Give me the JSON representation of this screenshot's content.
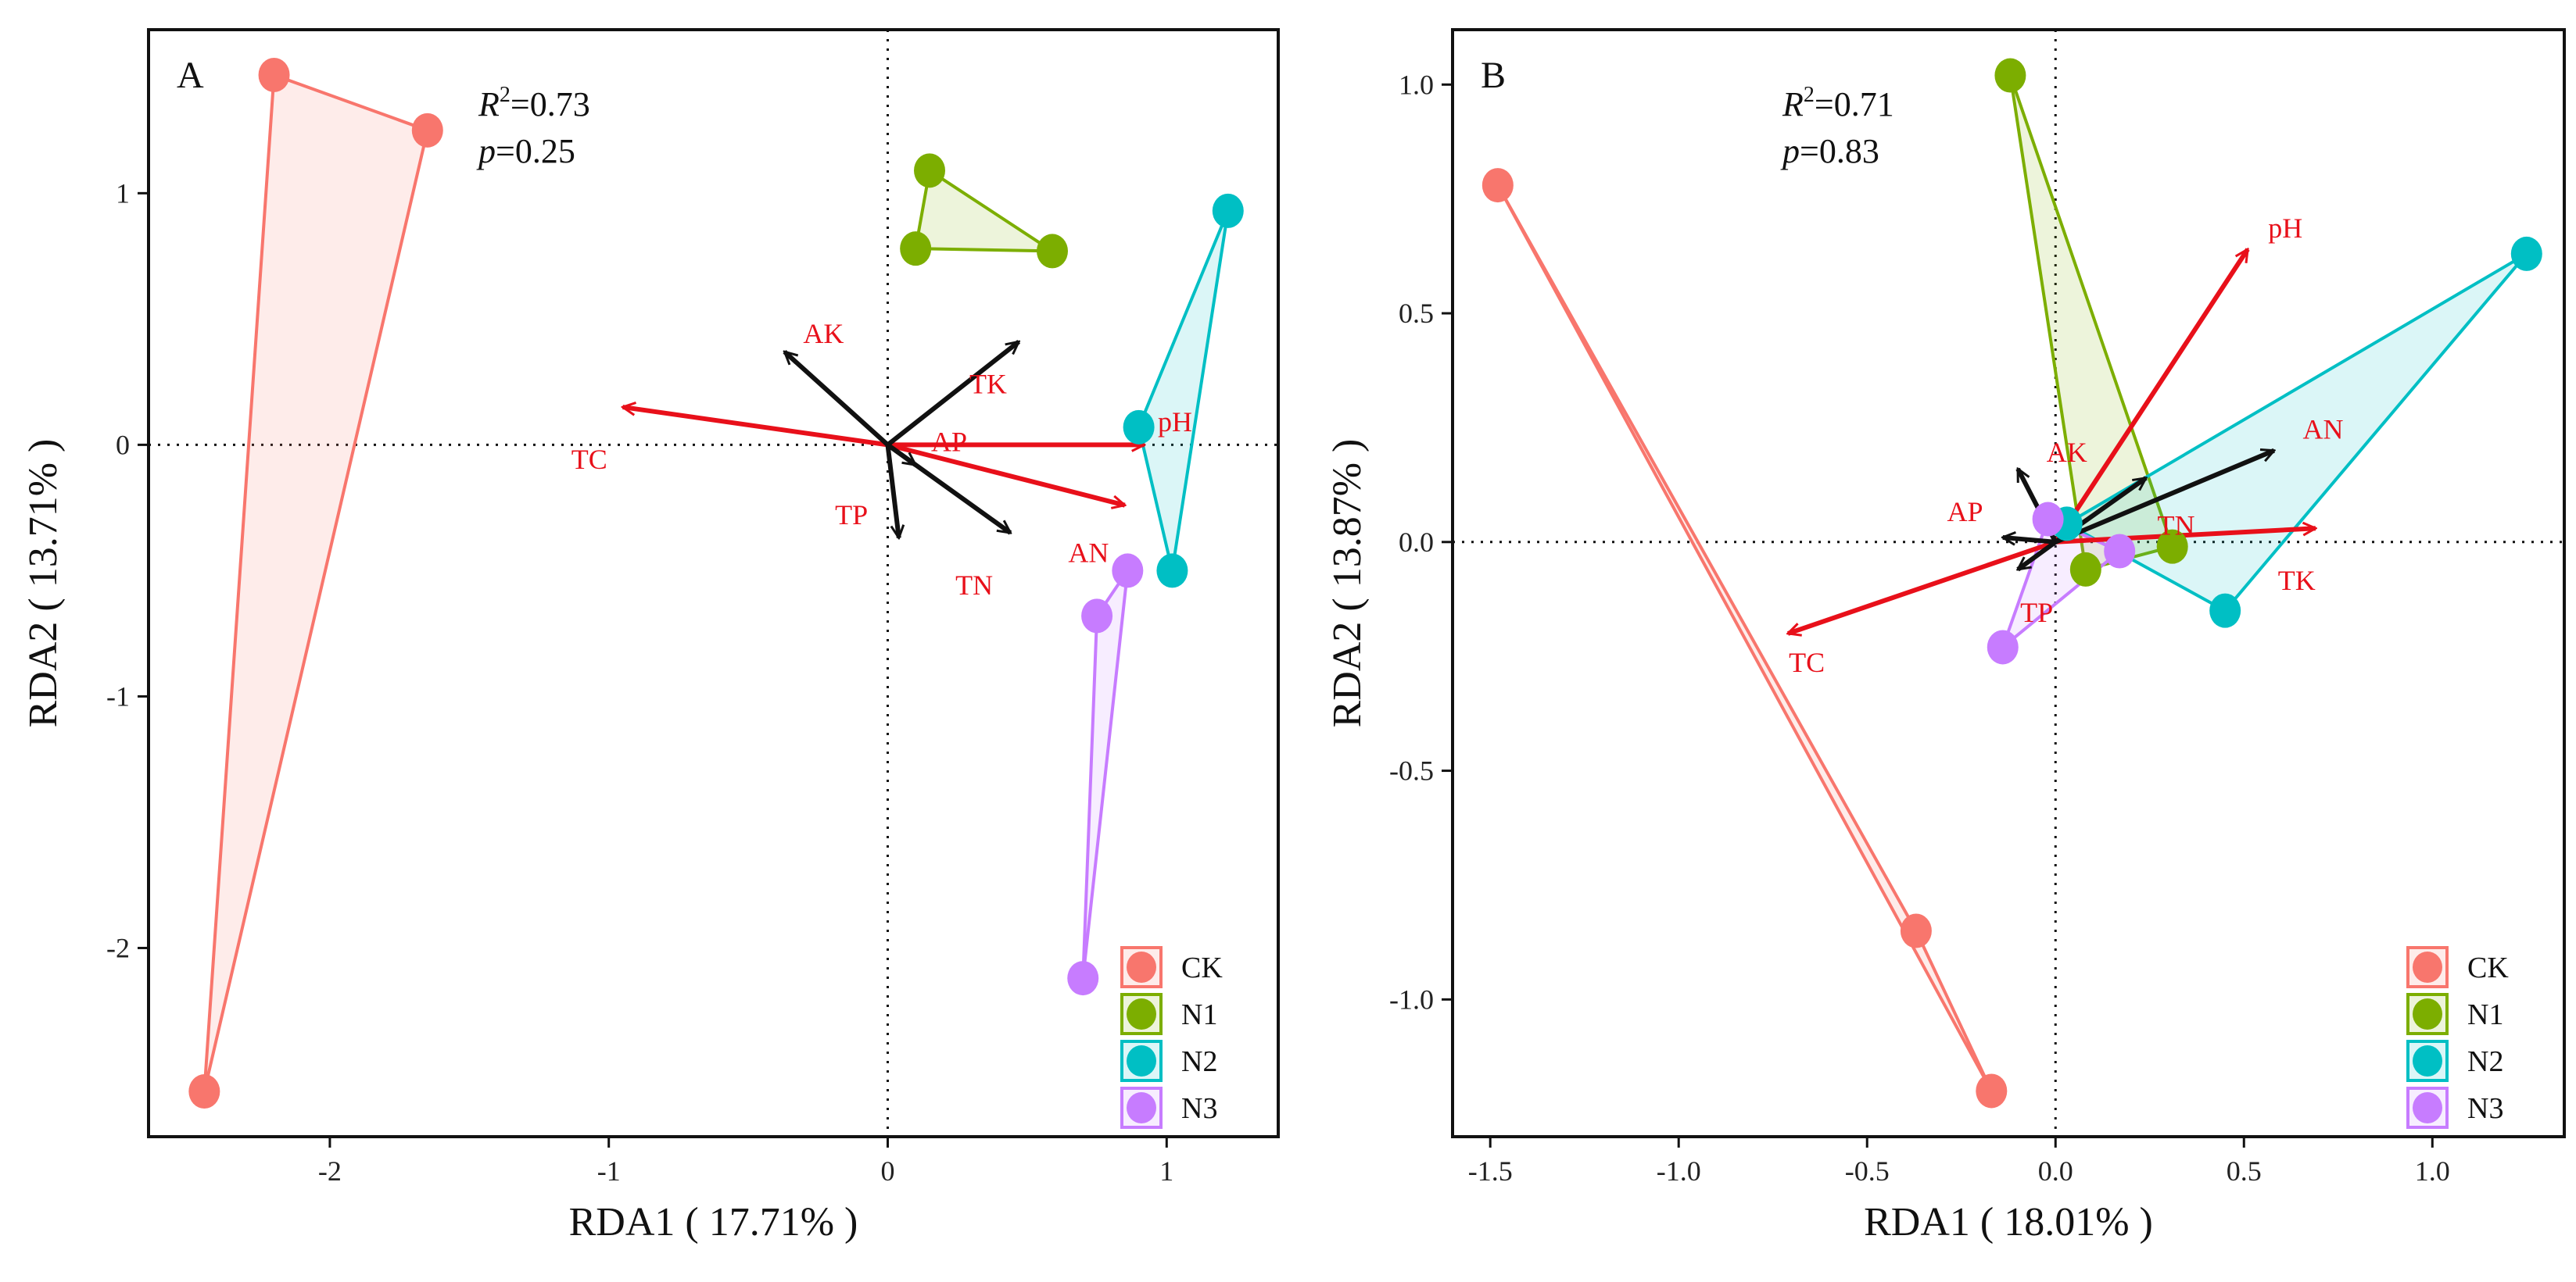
{
  "chart_data": [
    {
      "type": "scatter",
      "panel": "A",
      "xlabel": "RDA1 ( 17.71% )",
      "ylabel": "RDA2 ( 13.71% )",
      "xlim": [
        -2.65,
        1.4
      ],
      "ylim": [
        -2.75,
        1.65
      ],
      "xticks": [
        -2,
        -1,
        0,
        1
      ],
      "yticks": [
        -2,
        -1,
        0,
        1
      ],
      "xtick_labels": [
        "-2",
        "-1",
        "0",
        "1"
      ],
      "ytick_labels": [
        "-2",
        "-1",
        "0",
        "1"
      ],
      "annotations": {
        "r2_label": "R",
        "r2_sup": "2",
        "r2_value": "=0.73",
        "p_label": "p",
        "p_value": "=0.25"
      },
      "groups": [
        {
          "name": "CK",
          "color": "#F8766D",
          "points": [
            [
              -2.2,
              1.47
            ],
            [
              -1.65,
              1.25
            ],
            [
              -2.45,
              -2.57
            ]
          ]
        },
        {
          "name": "N1",
          "color": "#7CAE00",
          "points": [
            [
              0.15,
              1.09
            ],
            [
              0.1,
              0.78
            ],
            [
              0.59,
              0.77
            ]
          ]
        },
        {
          "name": "N2",
          "color": "#00BFC4",
          "points": [
            [
              1.22,
              0.93
            ],
            [
              0.9,
              0.07
            ],
            [
              1.02,
              -0.5
            ]
          ]
        },
        {
          "name": "N3",
          "color": "#C77CFF",
          "points": [
            [
              0.86,
              -0.5
            ],
            [
              0.75,
              -0.68
            ],
            [
              0.7,
              -2.12
            ]
          ]
        }
      ],
      "vectors": [
        {
          "label": "TC",
          "x": -0.95,
          "y": 0.15,
          "color": "#E8101A",
          "lx": -1.07,
          "ly": -0.07
        },
        {
          "label": "pH",
          "x": 0.92,
          "y": 0.0,
          "color": "#E8101A",
          "lx": 1.03,
          "ly": 0.08
        },
        {
          "label": "AN",
          "x": 0.85,
          "y": -0.24,
          "color": "#E8101A",
          "lx": 0.72,
          "ly": -0.44
        },
        {
          "label": "AK",
          "x": -0.37,
          "y": 0.37,
          "color": "#111111",
          "lx": -0.23,
          "ly": 0.43
        },
        {
          "label": "TK",
          "x": 0.47,
          "y": 0.41,
          "color": "#111111",
          "lx": 0.36,
          "ly": 0.23
        },
        {
          "label": "AP",
          "x": 0.1,
          "y": -0.08,
          "color": "#111111",
          "lx": 0.22,
          "ly": 0.0
        },
        {
          "label": "TP",
          "x": 0.04,
          "y": -0.37,
          "color": "#111111",
          "lx": -0.13,
          "ly": -0.29
        },
        {
          "label": "TN",
          "x": 0.44,
          "y": -0.35,
          "color": "#111111",
          "lx": 0.31,
          "ly": -0.57
        }
      ],
      "vector_label_colors": {
        "TC": "#E8101A",
        "pH": "#E8101A",
        "AN": "#E8101A",
        "AK": "#E8101A",
        "TK": "#E8101A",
        "AP": "#E8101A",
        "TP": "#E8101A",
        "TN": "#E8101A"
      },
      "legend": [
        "CK",
        "N1",
        "N2",
        "N3"
      ]
    },
    {
      "type": "scatter",
      "panel": "B",
      "xlabel": "RDA1 ( 18.01% )",
      "ylabel": "RDA2 ( 13.87% )",
      "xlim": [
        -1.6,
        1.35
      ],
      "ylim": [
        -1.3,
        1.12
      ],
      "xticks": [
        -1.5,
        -1.0,
        -0.5,
        0.0,
        0.5,
        1.0
      ],
      "yticks": [
        -1.0,
        -0.5,
        0.0,
        0.5,
        1.0
      ],
      "xtick_labels": [
        "-1.5",
        "-1.0",
        "-0.5",
        "0.0",
        "0.5",
        "1.0"
      ],
      "ytick_labels": [
        "-1.0",
        "-0.5",
        "0.0",
        "0.5",
        "1.0"
      ],
      "annotations": {
        "r2_label": "R",
        "r2_sup": "2",
        "r2_value": "=0.71",
        "p_label": "p",
        "p_value": "=0.83"
      },
      "groups": [
        {
          "name": "CK",
          "color": "#F8766D",
          "points": [
            [
              -1.48,
              0.78
            ],
            [
              -0.37,
              -0.85
            ],
            [
              -0.17,
              -1.2
            ]
          ]
        },
        {
          "name": "N1",
          "color": "#7CAE00",
          "points": [
            [
              -0.12,
              1.02
            ],
            [
              0.31,
              -0.01
            ],
            [
              0.08,
              -0.06
            ]
          ]
        },
        {
          "name": "N2",
          "color": "#00BFC4",
          "points": [
            [
              1.25,
              0.63
            ],
            [
              0.45,
              -0.15
            ],
            [
              0.03,
              0.04
            ]
          ]
        },
        {
          "name": "N3",
          "color": "#C77CFF",
          "points": [
            [
              -0.02,
              0.05
            ],
            [
              0.17,
              -0.02
            ],
            [
              -0.14,
              -0.23
            ]
          ]
        }
      ],
      "vectors": [
        {
          "label": "pH",
          "x": 0.51,
          "y": 0.64,
          "color": "#E8101A",
          "lx": 0.61,
          "ly": 0.68
        },
        {
          "label": "TK",
          "x": 0.69,
          "y": 0.03,
          "color": "#E8101A",
          "lx": 0.64,
          "ly": -0.09
        },
        {
          "label": "TC",
          "x": -0.71,
          "y": -0.2,
          "color": "#E8101A",
          "lx": -0.66,
          "ly": -0.27
        },
        {
          "label": "AN",
          "x": 0.58,
          "y": 0.2,
          "color": "#111111",
          "lx": 0.71,
          "ly": 0.24
        },
        {
          "label": "AK",
          "x": -0.1,
          "y": 0.16,
          "color": "#111111",
          "lx": 0.03,
          "ly": 0.19
        },
        {
          "label": "TN",
          "x": 0.24,
          "y": 0.14,
          "color": "#111111",
          "lx": 0.32,
          "ly": 0.03
        },
        {
          "label": "AP",
          "x": -0.14,
          "y": 0.01,
          "color": "#111111",
          "lx": -0.24,
          "ly": 0.06
        },
        {
          "label": "TP",
          "x": -0.1,
          "y": -0.06,
          "color": "#111111",
          "lx": -0.05,
          "ly": -0.16
        }
      ],
      "vector_label_colors": {
        "pH": "#E8101A",
        "TK": "#E8101A",
        "TC": "#E8101A",
        "AN": "#E8101A",
        "AK": "#E8101A",
        "TN": "#E8101A",
        "AP": "#E8101A",
        "TP": "#E8101A"
      },
      "legend": [
        "CK",
        "N1",
        "N2",
        "N3"
      ]
    }
  ]
}
